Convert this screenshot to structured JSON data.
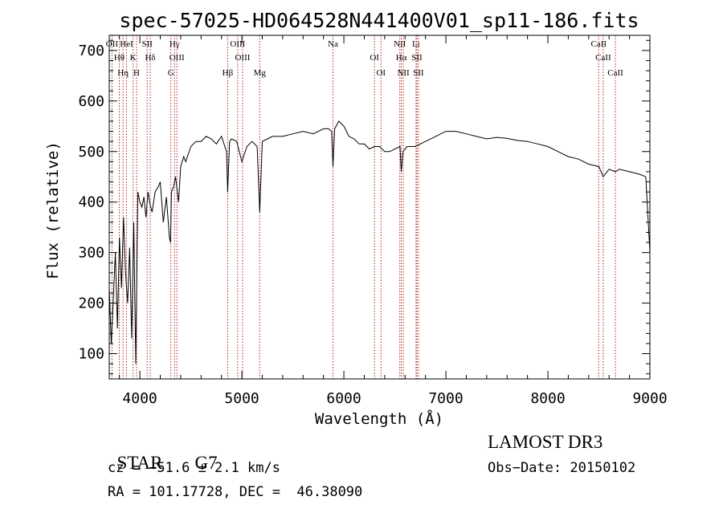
{
  "chart_data": {
    "type": "line",
    "title": "spec-57025-HD064528N441400V01_sp11-186.fits",
    "xlabel": "Wavelength (Å)",
    "ylabel": "Flux (relative)",
    "xlim": [
      3700,
      9000
    ],
    "ylim": [
      50,
      730
    ],
    "xticks": [
      4000,
      5000,
      6000,
      7000,
      8000,
      9000
    ],
    "yticks": [
      100,
      200,
      300,
      400,
      500,
      600,
      700
    ],
    "grid": false,
    "line_color": "#000000",
    "marker_color": "#b22222",
    "series": [
      {
        "x": [
          3700,
          3720,
          3740,
          3760,
          3780,
          3800,
          3820,
          3840,
          3860,
          3880,
          3900,
          3920,
          3940,
          3960,
          3980,
          4000,
          4020,
          4040,
          4060,
          4080,
          4100,
          4120,
          4150,
          4180,
          4200,
          4230,
          4260,
          4290,
          4300,
          4310,
          4330,
          4350,
          4380,
          4400,
          4430,
          4450,
          4500,
          4550,
          4600,
          4650,
          4700,
          4750,
          4800,
          4850,
          4861,
          4880,
          4900,
          4950,
          5000,
          5050,
          5100,
          5150,
          5175,
          5200,
          5250,
          5300,
          5400,
          5500,
          5600,
          5700,
          5800,
          5850,
          5880,
          5893,
          5910,
          5950,
          6000,
          6050,
          6100,
          6150,
          6200,
          6250,
          6300,
          6350,
          6400,
          6450,
          6500,
          6550,
          6563,
          6580,
          6620,
          6700,
          6800,
          6900,
          7000,
          7100,
          7200,
          7300,
          7400,
          7500,
          7600,
          7700,
          7800,
          7900,
          8000,
          8100,
          8200,
          8300,
          8400,
          8500,
          8542,
          8600,
          8662,
          8700,
          8800,
          8900,
          8960,
          9000
        ],
        "y": [
          230,
          120,
          210,
          300,
          150,
          330,
          230,
          370,
          260,
          200,
          310,
          130,
          360,
          80,
          420,
          400,
          390,
          410,
          370,
          420,
          395,
          380,
          420,
          430,
          440,
          360,
          410,
          330,
          320,
          420,
          430,
          450,
          400,
          470,
          490,
          480,
          510,
          520,
          520,
          530,
          525,
          515,
          530,
          500,
          420,
          520,
          525,
          520,
          480,
          510,
          520,
          510,
          380,
          520,
          525,
          530,
          530,
          535,
          540,
          535,
          545,
          545,
          540,
          470,
          545,
          560,
          550,
          530,
          525,
          515,
          515,
          505,
          510,
          510,
          500,
          500,
          505,
          510,
          460,
          500,
          510,
          510,
          520,
          530,
          540,
          540,
          535,
          530,
          525,
          528,
          526,
          522,
          520,
          515,
          510,
          500,
          490,
          485,
          475,
          470,
          450,
          465,
          460,
          465,
          460,
          455,
          450,
          300
        ]
      }
    ],
    "line_markers": [
      {
        "wl": 3727,
        "label": "OII"
      },
      {
        "wl": 3798,
        "label": "Hθ"
      },
      {
        "wl": 3835,
        "label": "Hη"
      },
      {
        "wl": 3869,
        "label": "HeI"
      },
      {
        "wl": 3933,
        "label": "K"
      },
      {
        "wl": 3968,
        "label": "H"
      },
      {
        "wl": 4072,
        "label": "SII"
      },
      {
        "wl": 4102,
        "label": "Hδ"
      },
      {
        "wl": 4304,
        "label": "G"
      },
      {
        "wl": 4340,
        "label": "Hγ"
      },
      {
        "wl": 4363,
        "label": "OIII"
      },
      {
        "wl": 4861,
        "label": "Hβ"
      },
      {
        "wl": 4959,
        "label": "OIII"
      },
      {
        "wl": 5007,
        "label": "OIII"
      },
      {
        "wl": 5175,
        "label": "Mg"
      },
      {
        "wl": 5893,
        "label": "Na"
      },
      {
        "wl": 6300,
        "label": "OI"
      },
      {
        "wl": 6364,
        "label": "OI"
      },
      {
        "wl": 6548,
        "label": "NII"
      },
      {
        "wl": 6563,
        "label": "Hα"
      },
      {
        "wl": 6583,
        "label": "NII"
      },
      {
        "wl": 6707,
        "label": "Li"
      },
      {
        "wl": 6716,
        "label": "SII"
      },
      {
        "wl": 6731,
        "label": "SII"
      },
      {
        "wl": 8498,
        "label": "CaII"
      },
      {
        "wl": 8542,
        "label": "CaII"
      },
      {
        "wl": 8662,
        "label": "CaII"
      }
    ]
  },
  "info": {
    "star_label": "STAR",
    "subclass": "G7",
    "survey": "LAMOST DR3",
    "cz": "cz = −51.6 ± 2.1 km/s",
    "obs_date": "Obs−Date: 20150102",
    "coords": "RA = 101.17728, DEC =  46.38090"
  }
}
